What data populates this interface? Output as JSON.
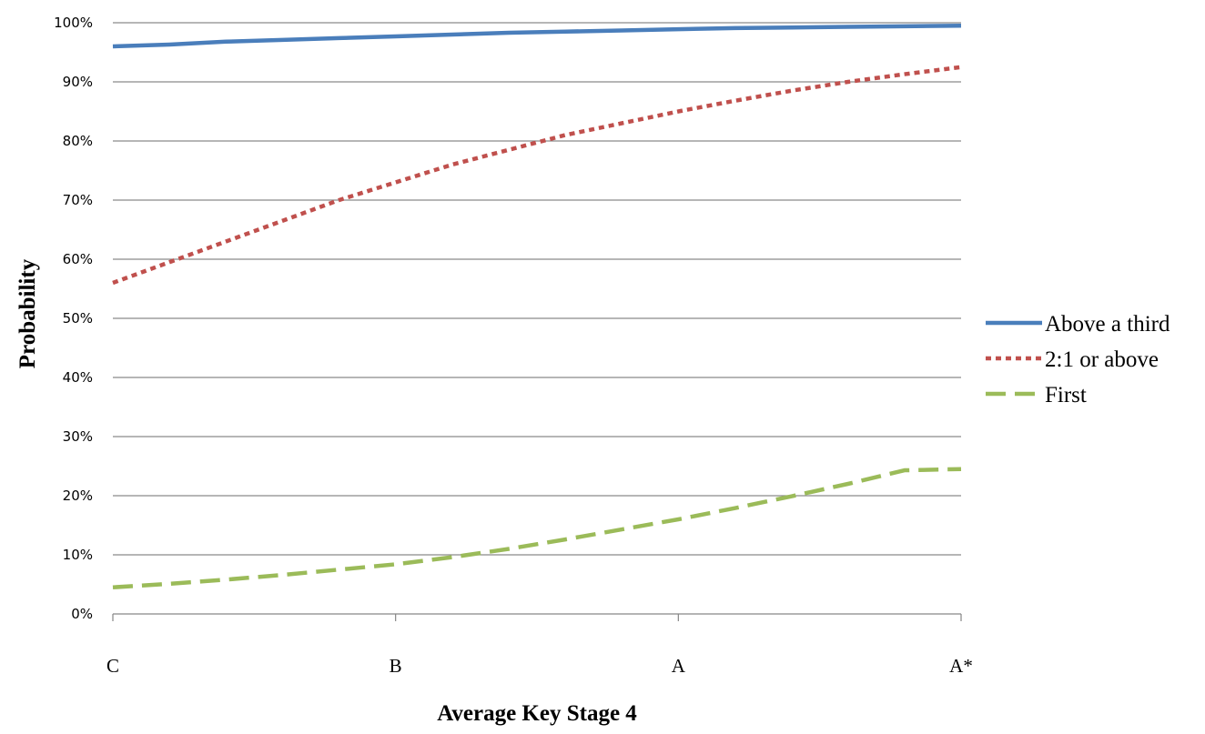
{
  "chart_data": {
    "type": "line",
    "xlabel": "Average Key Stage 4",
    "ylabel": "Probability",
    "categories": [
      "C",
      "B",
      "A",
      "A*"
    ],
    "x": [
      0,
      0.2,
      0.4,
      0.6,
      0.8,
      1.0,
      1.2,
      1.4,
      1.6,
      1.8,
      2.0,
      2.2,
      2.4,
      2.6,
      2.8,
      3.0
    ],
    "ylim": [
      0,
      100
    ],
    "yticks": [
      "0%",
      "10%",
      "20%",
      "30%",
      "40%",
      "50%",
      "60%",
      "70%",
      "80%",
      "90%",
      "100%"
    ],
    "grid": "horizontal",
    "legend_position": "right",
    "series": [
      {
        "name": "Above a third",
        "color": "#4a7ebb",
        "dash": "solid",
        "values": [
          96.0,
          96.3,
          96.8,
          97.1,
          97.4,
          97.7,
          98.0,
          98.3,
          98.5,
          98.7,
          98.9,
          99.1,
          99.2,
          99.3,
          99.4,
          99.5
        ]
      },
      {
        "name": "2:1 or above",
        "color": "#c0504d",
        "dash": "dotted",
        "values": [
          56.0,
          59.5,
          63.0,
          66.5,
          70.0,
          73.0,
          76.0,
          78.5,
          81.0,
          83.0,
          85.0,
          86.8,
          88.5,
          90.0,
          91.3,
          92.5
        ]
      },
      {
        "name": "First",
        "color": "#9bbb59",
        "dash": "dashed",
        "values": [
          4.5,
          5.1,
          5.8,
          6.6,
          7.5,
          8.4,
          9.6,
          11.0,
          12.6,
          14.3,
          16.0,
          17.9,
          19.9,
          22.0,
          24.3,
          24.5
        ]
      }
    ]
  }
}
